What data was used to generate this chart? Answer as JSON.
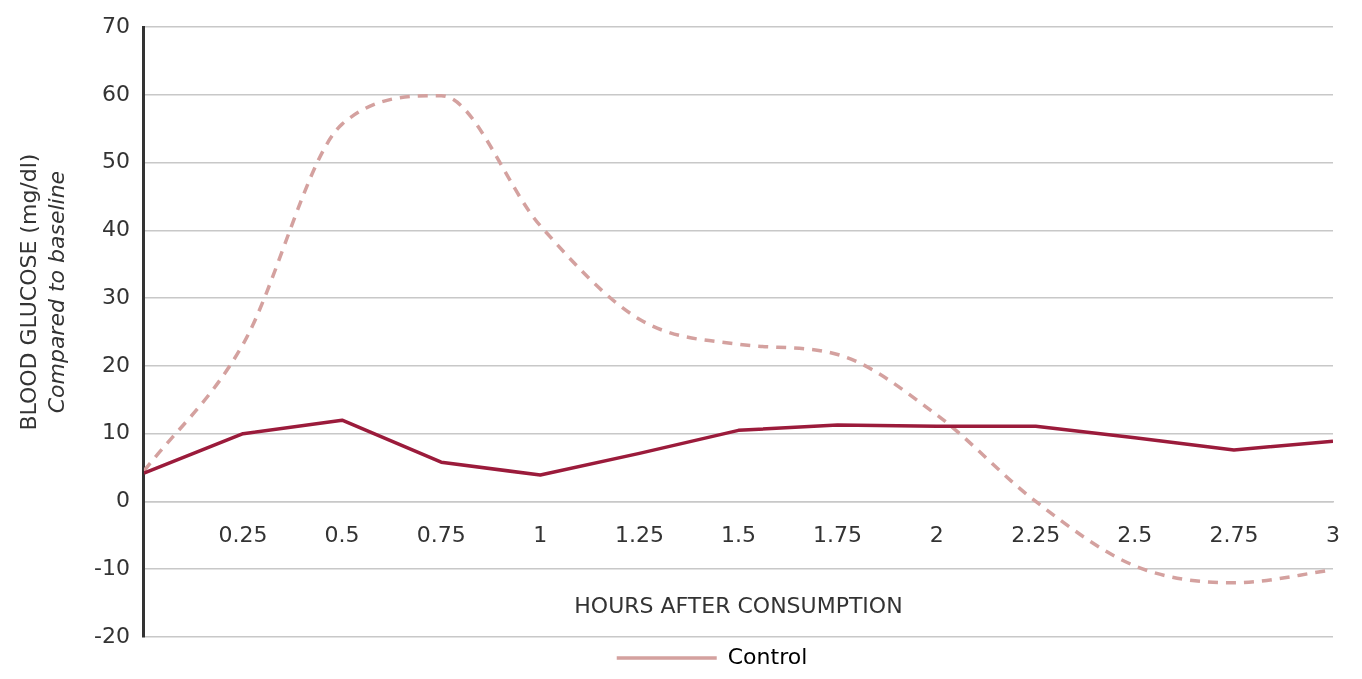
{
  "chart_data": {
    "type": "line",
    "xlabel": "HOURS AFTER CONSUMPTION",
    "ylabel": "BLOOD GLUCOSE (mg/dl)",
    "annotations": [
      "Compared to baseline"
    ],
    "x": [
      0,
      0.25,
      0.5,
      0.75,
      1,
      1.25,
      1.5,
      1.75,
      2,
      2.25,
      2.5,
      2.75,
      3
    ],
    "series": [
      {
        "color": "#9b1b3b",
        "line_style": "solid",
        "values": [
          4.2,
          10,
          12,
          5.8,
          3.9,
          7.1,
          10.5,
          11.3,
          11.1,
          11.1,
          9.4,
          7.6,
          8.9
        ]
      },
      {
        "name": "Control",
        "color": "#d4a19f",
        "line_style": "dashed",
        "values": [
          4.5,
          23.2,
          55.7,
          59.9,
          40.7,
          26.9,
          23.2,
          21.7,
          12.8,
          0,
          -9.5,
          -12,
          -10.1
        ]
      }
    ],
    "xlim": [
      0,
      3
    ],
    "xticks": [
      {
        "value": 0,
        "label": null
      },
      0.25,
      0.5,
      0.75,
      1,
      1.25,
      1.5,
      1.75,
      2,
      2.25,
      2.5,
      2.75,
      3
    ],
    "ylim": [
      -20,
      70
    ],
    "yticks": [
      -20,
      -10,
      0,
      10,
      20,
      30,
      40,
      50,
      60,
      70
    ],
    "grid": "y",
    "legend": "bottom",
    "marker": "none"
  }
}
